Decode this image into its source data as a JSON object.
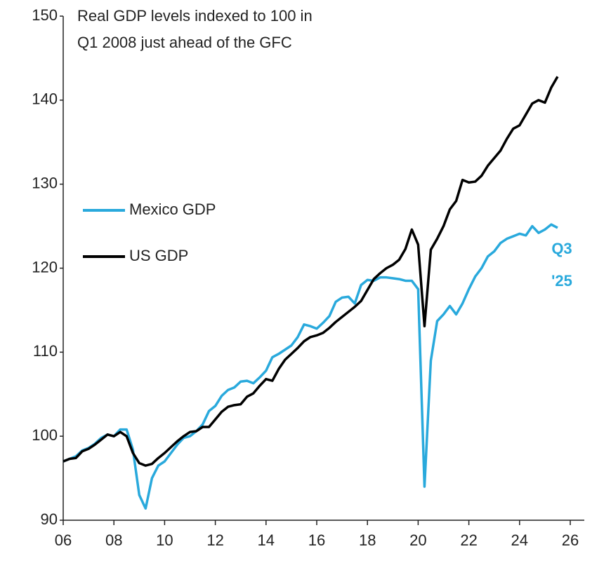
{
  "chart_data": {
    "type": "line",
    "title": [
      "Real GDP levels indexed to 100 in",
      "Q1 2008 just ahead of the GFC"
    ],
    "annotation": [
      "Q3",
      "'25"
    ],
    "x": [
      2006,
      2006.25,
      2006.5,
      2006.75,
      2007,
      2007.25,
      2007.5,
      2007.75,
      2008,
      2008.25,
      2008.5,
      2008.75,
      2009,
      2009.25,
      2009.5,
      2009.75,
      2010,
      2010.25,
      2010.5,
      2010.75,
      2011,
      2011.25,
      2011.5,
      2011.75,
      2012,
      2012.25,
      2012.5,
      2012.75,
      2013,
      2013.25,
      2013.5,
      2013.75,
      2014,
      2014.25,
      2014.5,
      2014.75,
      2015,
      2015.25,
      2015.5,
      2015.75,
      2016,
      2016.25,
      2016.5,
      2016.75,
      2017,
      2017.25,
      2017.5,
      2017.75,
      2018,
      2018.25,
      2018.5,
      2018.75,
      2019,
      2019.25,
      2019.5,
      2019.75,
      2020,
      2020.25,
      2020.5,
      2020.75,
      2021,
      2021.25,
      2021.5,
      2021.75,
      2022,
      2022.25,
      2022.5,
      2022.75,
      2023,
      2023.25,
      2023.5,
      2023.75,
      2024,
      2024.25,
      2024.5,
      2024.75,
      2025,
      2025.25,
      2025.5
    ],
    "series": [
      {
        "name": "Mexico GDP",
        "color": "#29a9dc",
        "values": [
          97.0,
          97.3,
          97.6,
          98.3,
          98.6,
          99.1,
          99.8,
          100.2,
          100.0,
          100.8,
          100.8,
          98.4,
          93.0,
          91.4,
          95.0,
          96.5,
          97.0,
          98.0,
          99.0,
          99.8,
          100.0,
          100.6,
          101.4,
          103.0,
          103.6,
          104.8,
          105.5,
          105.8,
          106.5,
          106.6,
          106.3,
          107.0,
          107.8,
          109.4,
          109.8,
          110.3,
          110.8,
          111.8,
          113.3,
          113.1,
          112.8,
          113.5,
          114.3,
          116.0,
          116.5,
          116.6,
          115.8,
          118.0,
          118.6,
          118.5,
          118.9,
          118.9,
          118.8,
          118.7,
          118.5,
          118.5,
          117.5,
          94.0,
          109.0,
          113.7,
          114.5,
          115.5,
          114.5,
          115.8,
          117.5,
          119.0,
          120.0,
          121.4,
          122.0,
          123.0,
          123.5,
          123.8,
          124.1,
          123.9,
          125.0,
          124.2,
          124.6,
          125.2,
          124.8
        ]
      },
      {
        "name": "US GDP",
        "color": "#000000",
        "values": [
          97.0,
          97.3,
          97.4,
          98.2,
          98.5,
          99.0,
          99.6,
          100.2,
          100.0,
          100.5,
          100.0,
          98.0,
          96.8,
          96.5,
          96.7,
          97.4,
          98.0,
          98.7,
          99.4,
          100.0,
          100.5,
          100.6,
          101.1,
          101.1,
          102.0,
          102.9,
          103.5,
          103.7,
          103.8,
          104.7,
          105.1,
          106.0,
          106.8,
          106.6,
          108.0,
          109.1,
          109.8,
          110.5,
          111.3,
          111.8,
          112.0,
          112.3,
          112.9,
          113.6,
          114.2,
          114.8,
          115.4,
          116.1,
          117.4,
          118.7,
          119.4,
          120.0,
          120.4,
          121.0,
          122.3,
          124.6,
          122.8,
          113.1,
          122.2,
          123.5,
          125.0,
          127.0,
          128.0,
          130.5,
          130.2,
          130.3,
          131.0,
          132.2,
          133.1,
          134.0,
          135.4,
          136.6,
          137.0,
          138.3,
          139.6,
          140.0,
          139.7,
          141.5,
          142.8
        ]
      }
    ],
    "xlim": [
      2006,
      2026
    ],
    "xticks": [
      {
        "value": 2006,
        "label": "06"
      },
      {
        "value": 2008,
        "label": "08"
      },
      {
        "value": 2010,
        "label": "10"
      },
      {
        "value": 2012,
        "label": "12"
      },
      {
        "value": 2014,
        "label": "14"
      },
      {
        "value": 2016,
        "label": "16"
      },
      {
        "value": 2018,
        "label": "18"
      },
      {
        "value": 2020,
        "label": "20"
      },
      {
        "value": 2022,
        "label": "22"
      },
      {
        "value": 2024,
        "label": "24"
      },
      {
        "value": 2026,
        "label": "26"
      }
    ],
    "ylim": [
      90,
      150
    ],
    "yticks": [
      90,
      100,
      110,
      120,
      130,
      140,
      150
    ],
    "grid": false
  }
}
